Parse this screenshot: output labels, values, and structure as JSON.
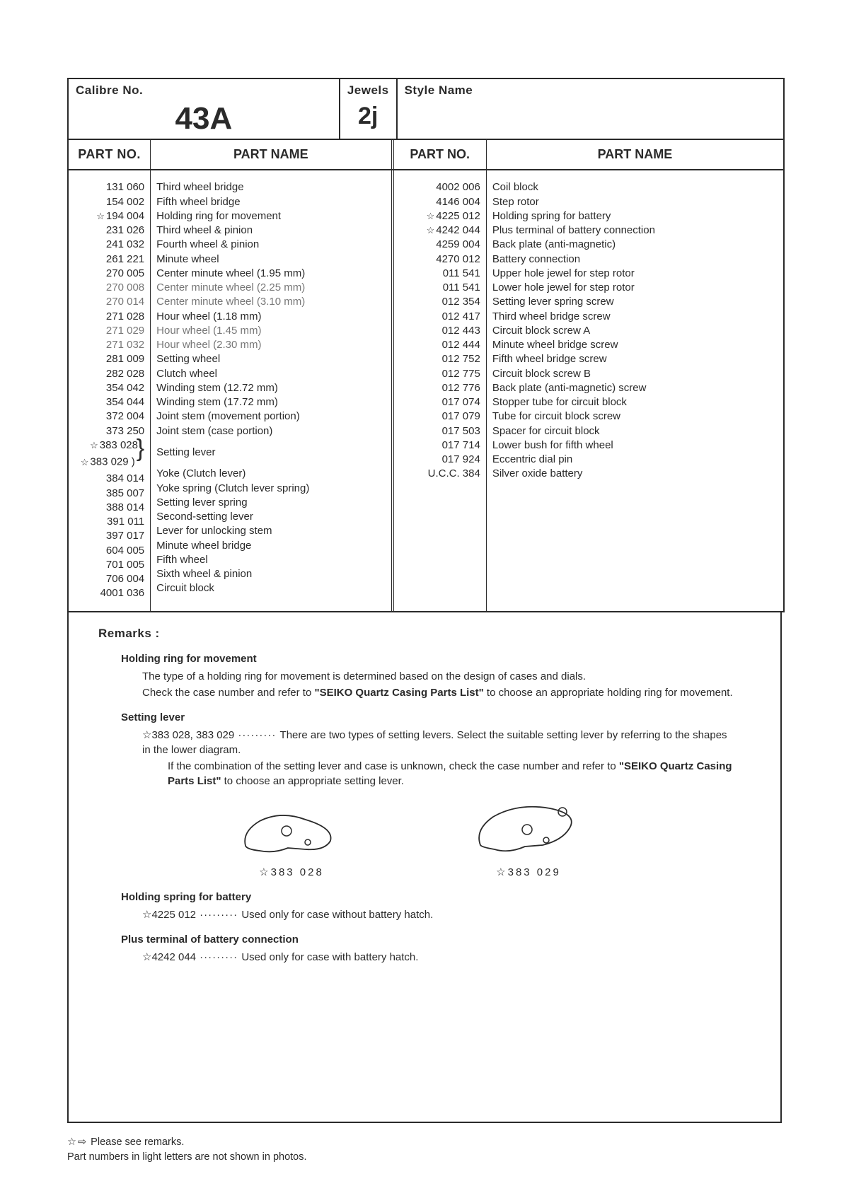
{
  "header": {
    "calibre_label": "Calibre No.",
    "calibre_value": "43A",
    "jewels_label": "Jewels",
    "jewels_value": "2j",
    "style_label": "Style Name"
  },
  "col_headers": {
    "partno_l": "PART NO.",
    "partname_l": "PART NAME",
    "partno_r": "PART NO.",
    "partname_r": "PART NAME"
  },
  "left_parts": [
    {
      "no": "131 060",
      "name": "Third wheel bridge",
      "star": false,
      "light": false
    },
    {
      "no": "154 002",
      "name": "Fifth wheel bridge",
      "star": false,
      "light": false
    },
    {
      "no": "194 004",
      "name": "Holding ring for movement",
      "star": true,
      "light": false
    },
    {
      "no": "231 026",
      "name": "Third wheel & pinion",
      "star": false,
      "light": false
    },
    {
      "no": "241 032",
      "name": "Fourth wheel & pinion",
      "star": false,
      "light": false
    },
    {
      "no": "261 221",
      "name": "Minute wheel",
      "star": false,
      "light": false
    },
    {
      "no": "270 005",
      "name": "Center minute wheel (1.95 mm)",
      "star": false,
      "light": false
    },
    {
      "no": "270 008",
      "name": "Center minute wheel (2.25 mm)",
      "star": false,
      "light": true
    },
    {
      "no": "270 014",
      "name": "Center minute wheel (3.10 mm)",
      "star": false,
      "light": true
    },
    {
      "no": "271 028",
      "name": "Hour wheel (1.18 mm)",
      "star": false,
      "light": false
    },
    {
      "no": "271 029",
      "name": "Hour wheel (1.45 mm)",
      "star": false,
      "light": true
    },
    {
      "no": "271 032",
      "name": "Hour wheel (2.30 mm)",
      "star": false,
      "light": true
    },
    {
      "no": "281 009",
      "name": "Setting wheel",
      "star": false,
      "light": false
    },
    {
      "no": "282 028",
      "name": "Clutch wheel",
      "star": false,
      "light": false
    },
    {
      "no": "354 042",
      "name": "Winding stem (12.72 mm)",
      "star": false,
      "light": false
    },
    {
      "no": "354 044",
      "name": "Winding stem (17.72 mm)",
      "star": false,
      "light": false
    },
    {
      "no": "372 004",
      "name": "Joint stem (movement portion)",
      "star": false,
      "light": false
    },
    {
      "no": "373 250",
      "name": "Joint stem (case portion)",
      "star": false,
      "light": false
    },
    {
      "no": "383 028",
      "name": "",
      "star": true,
      "light": false
    },
    {
      "no": "383 029",
      "name": "Setting lever",
      "star": true,
      "light": false
    },
    {
      "no": "384 014",
      "name": "Yoke (Clutch lever)",
      "star": false,
      "light": false
    },
    {
      "no": "385 007",
      "name": "Yoke spring (Clutch lever spring)",
      "star": false,
      "light": false
    },
    {
      "no": "388 014",
      "name": "Setting lever spring",
      "star": false,
      "light": false
    },
    {
      "no": "391 011",
      "name": "Second-setting lever",
      "star": false,
      "light": false
    },
    {
      "no": "397 017",
      "name": "Lever for unlocking stem",
      "star": false,
      "light": false
    },
    {
      "no": "604 005",
      "name": "Minute wheel bridge",
      "star": false,
      "light": false
    },
    {
      "no": "701 005",
      "name": "Fifth wheel",
      "star": false,
      "light": false
    },
    {
      "no": "706 004",
      "name": "Sixth wheel & pinion",
      "star": false,
      "light": false
    },
    {
      "no": "4001 036",
      "name": "Circuit block",
      "star": false,
      "light": false
    }
  ],
  "right_parts": [
    {
      "no": "4002 006",
      "name": "Coil block",
      "star": false
    },
    {
      "no": "4146 004",
      "name": "Step rotor",
      "star": false
    },
    {
      "no": "4225 012",
      "name": "Holding spring for battery",
      "star": true
    },
    {
      "no": "4242 044",
      "name": "Plus terminal of battery connection",
      "star": true
    },
    {
      "no": "4259 004",
      "name": "Back plate (anti-magnetic)",
      "star": false
    },
    {
      "no": "4270 012",
      "name": "Battery connection",
      "star": false
    },
    {
      "no": "011 541",
      "name": "Upper hole jewel for step rotor",
      "star": false
    },
    {
      "no": "011 541",
      "name": "Lower hole jewel for step rotor",
      "star": false
    },
    {
      "no": "012 354",
      "name": "Setting lever spring screw",
      "star": false
    },
    {
      "no": "012 417",
      "name": "Third wheel bridge screw",
      "star": false
    },
    {
      "no": "012 443",
      "name": "Circuit block screw A",
      "star": false
    },
    {
      "no": "012 444",
      "name": "Minute wheel bridge screw",
      "star": false
    },
    {
      "no": "012 752",
      "name": "Fifth wheel bridge screw",
      "star": false
    },
    {
      "no": "012 775",
      "name": "Circuit block screw B",
      "star": false
    },
    {
      "no": "012 776",
      "name": "Back plate (anti-magnetic) screw",
      "star": false
    },
    {
      "no": "017 074",
      "name": "Stopper tube for circuit block",
      "star": false
    },
    {
      "no": "017 079",
      "name": "Tube for circuit block screw",
      "star": false
    },
    {
      "no": "017 503",
      "name": "Spacer for circuit block",
      "star": false
    },
    {
      "no": "017 714",
      "name": "Lower bush for fifth wheel",
      "star": false
    },
    {
      "no": "017 924",
      "name": "Eccentric dial pin",
      "star": false
    },
    {
      "no": "U.C.C. 384",
      "name": "Silver oxide battery",
      "star": false
    }
  ],
  "remarks": {
    "title": "Remarks :",
    "holding_ring_h": "Holding ring for movement",
    "holding_ring_p1": "The type of a holding ring for movement is determined based on the design of cases and dials.",
    "holding_ring_p2a": "Check the case number and refer to ",
    "holding_ring_p2b": "\"SEIKO Quartz Casing Parts List\"",
    "holding_ring_p2c": " to choose an appropriate holding ring for movement.",
    "setting_lever_h": "Setting lever",
    "setting_lever_nos": "☆383 028, 383 029",
    "setting_lever_p1": "There are two types of setting levers.  Select the suitable setting lever by referring to the shapes in the lower diagram.",
    "setting_lever_p2a": "If the combination of the setting lever and case is unknown, check the case number and refer to ",
    "setting_lever_p2b": "\"SEIKO Quartz Casing Parts List\"",
    "setting_lever_p2c": " to choose an appropriate setting lever.",
    "lev_a_cap": "☆383 028",
    "lev_b_cap": "☆383 029",
    "holding_spring_h": "Holding spring for battery",
    "holding_spring_no": "☆4225 012",
    "holding_spring_txt": "Used only for case without battery hatch.",
    "plus_term_h": "Plus terminal of battery connection",
    "plus_term_no": "☆4242 044",
    "plus_term_txt": "Used only for case with battery hatch."
  },
  "footnotes": {
    "line1a": "☆",
    "line1b": " Please see remarks.",
    "line2": "Part numbers in light letters are not shown in photos."
  }
}
